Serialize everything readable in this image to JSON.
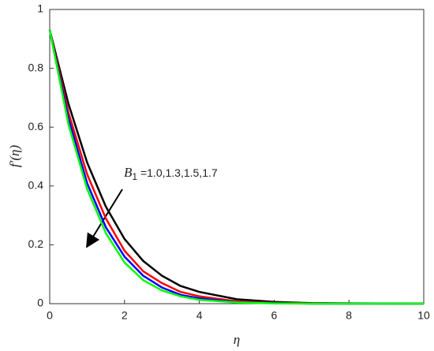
{
  "chart_data": {
    "type": "line",
    "xlabel": "η",
    "ylabel": "f′(η)",
    "annotation": {
      "symbol": "B",
      "subscript": "1",
      "text": " =1.0,1.3,1.5,1.7"
    },
    "x": [
      0,
      0.5,
      1,
      1.5,
      2,
      2.5,
      3,
      3.5,
      4,
      5,
      6,
      7,
      8,
      10
    ],
    "series": [
      {
        "color": "#000000",
        "values": [
          0.93,
          0.68,
          0.48,
          0.33,
          0.22,
          0.145,
          0.095,
          0.06,
          0.04,
          0.015,
          0.006,
          0.002,
          0.001,
          0
        ]
      },
      {
        "color": "#ff0000",
        "values": [
          0.93,
          0.65,
          0.44,
          0.29,
          0.18,
          0.11,
          0.07,
          0.04,
          0.025,
          0.008,
          0.003,
          0.001,
          0,
          0
        ]
      },
      {
        "color": "#0000ff",
        "values": [
          0.93,
          0.63,
          0.41,
          0.26,
          0.16,
          0.095,
          0.055,
          0.03,
          0.018,
          0.005,
          0.002,
          0,
          0,
          0
        ]
      },
      {
        "color": "#00ff00",
        "values": [
          0.93,
          0.61,
          0.39,
          0.24,
          0.14,
          0.08,
          0.045,
          0.025,
          0.013,
          0.004,
          0.001,
          0,
          0,
          0
        ]
      }
    ],
    "xlim": [
      0,
      10
    ],
    "xticks": [
      0,
      2,
      4,
      6,
      8,
      10
    ],
    "ylim": [
      0,
      1
    ],
    "yticks": [
      0,
      0.2,
      0.4,
      0.6,
      0.8,
      1
    ]
  }
}
